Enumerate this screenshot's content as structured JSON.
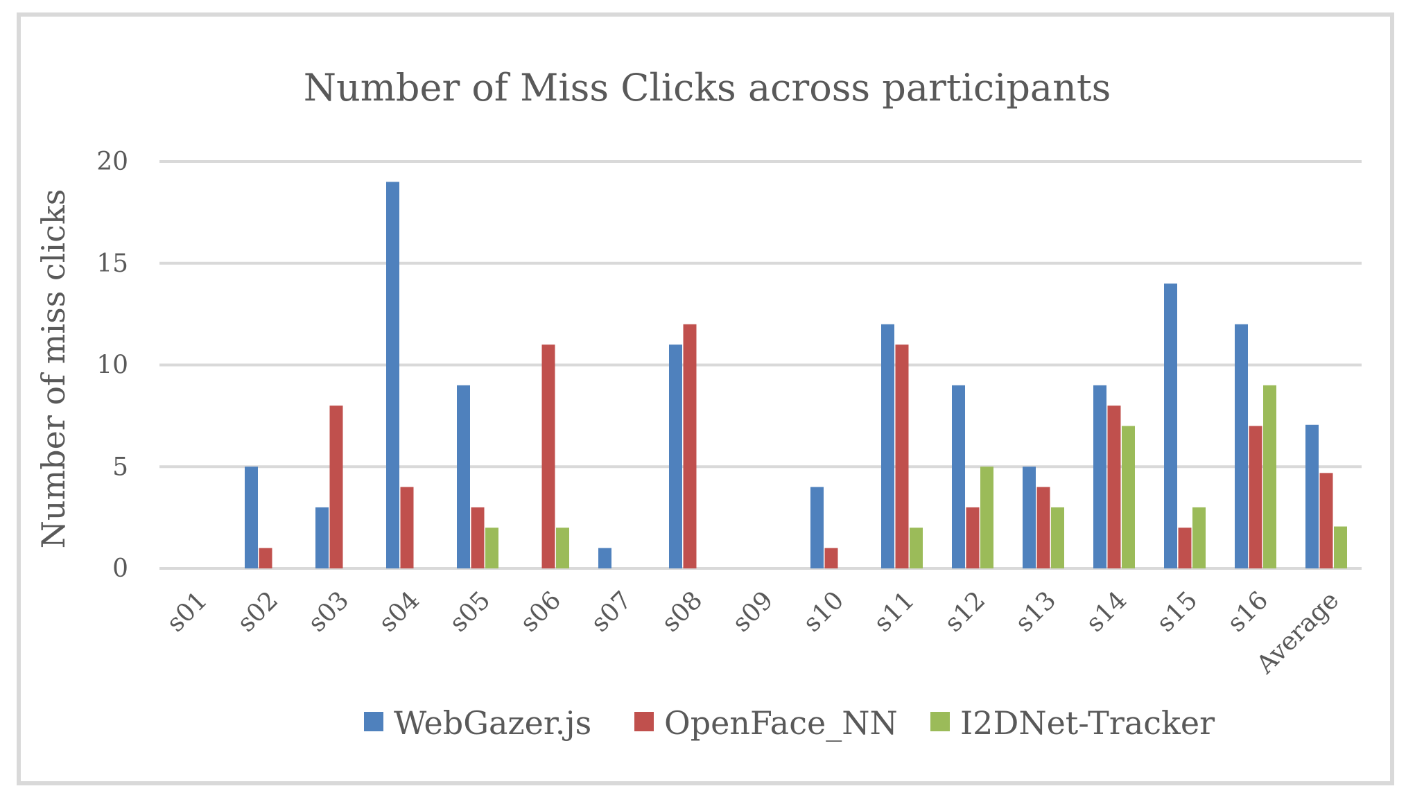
{
  "chart_data": {
    "type": "bar",
    "title": "Number of Miss Clicks across participants",
    "xlabel": "",
    "ylabel": "Number of miss clicks",
    "ylim": [
      0,
      20
    ],
    "yticks": [
      0,
      5,
      10,
      15,
      20
    ],
    "grid": true,
    "legend_position": "bottom",
    "categories": [
      "s01",
      "s02",
      "s03",
      "s04",
      "s05",
      "s06",
      "s07",
      "s08",
      "s09",
      "s10",
      "s11",
      "s12",
      "s13",
      "s14",
      "s15",
      "s16",
      "Average"
    ],
    "series": [
      {
        "name": "WebGazer.js",
        "color": "#4f81bd",
        "values": [
          0,
          5,
          3,
          19,
          9,
          0,
          1,
          11,
          0,
          4,
          12,
          9,
          5,
          9,
          14,
          12,
          7.06
        ]
      },
      {
        "name": "OpenFace_NN",
        "color": "#c0504d",
        "values": [
          0,
          1,
          8,
          4,
          3,
          11,
          0,
          12,
          0,
          1,
          11,
          3,
          4,
          8,
          2,
          7,
          4.69
        ]
      },
      {
        "name": "I2DNet-Tracker",
        "color": "#9bbb59",
        "values": [
          0,
          0,
          0,
          0,
          2,
          2,
          0,
          0,
          0,
          0,
          2,
          5,
          3,
          7,
          3,
          9,
          2.06
        ]
      }
    ]
  }
}
